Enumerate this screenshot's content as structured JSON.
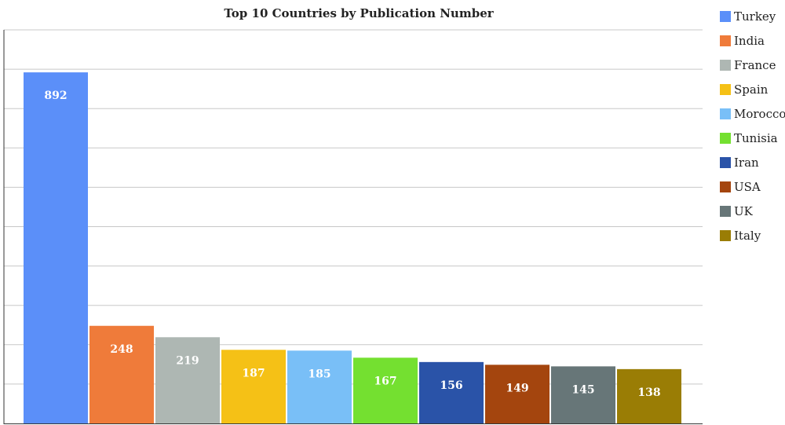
{
  "chart_data": {
    "type": "bar",
    "title": "Top 10 Countries by Publication Number",
    "xlabel": "",
    "ylabel": "",
    "ylim": [
      0,
      1000
    ],
    "grid": true,
    "legend_position": "right",
    "categories": [
      "Turkey",
      "India",
      "France",
      "Spain",
      "Morocco",
      "Tunisia",
      "Iran",
      "USA",
      "UK",
      "Italy"
    ],
    "values": [
      892,
      248,
      219,
      187,
      185,
      167,
      156,
      149,
      145,
      138
    ],
    "colors": [
      "#5b8ff9",
      "#ef7b3a",
      "#aeb7b3",
      "#f5c116",
      "#79bff7",
      "#74e030",
      "#2a53a8",
      "#a4450e",
      "#677678",
      "#9a7d05"
    ],
    "show_data_labels": true
  }
}
